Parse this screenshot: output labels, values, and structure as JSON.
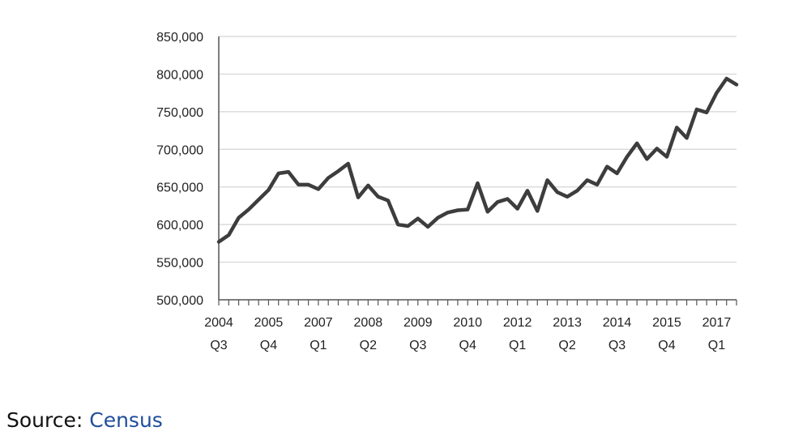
{
  "chart_data": {
    "type": "line",
    "title": "",
    "xlabel": "",
    "ylabel": "",
    "ylim": [
      500000,
      850000
    ],
    "yticks": [
      "850,000",
      "800,000",
      "750,000",
      "700,000",
      "650,000",
      "600,000",
      "550,000",
      "500,000"
    ],
    "ytick_values": [
      850000,
      800000,
      750000,
      700000,
      650000,
      600000,
      550000,
      500000
    ],
    "xtick_labels": [
      {
        "year": "2004",
        "quarter": "Q3"
      },
      {
        "year": "2005",
        "quarter": "Q4"
      },
      {
        "year": "2007",
        "quarter": "Q1"
      },
      {
        "year": "2008",
        "quarter": "Q2"
      },
      {
        "year": "2009",
        "quarter": "Q3"
      },
      {
        "year": "2010",
        "quarter": "Q4"
      },
      {
        "year": "2012",
        "quarter": "Q1"
      },
      {
        "year": "2013",
        "quarter": "Q2"
      },
      {
        "year": "2014",
        "quarter": "Q3"
      },
      {
        "year": "2015",
        "quarter": "Q4"
      },
      {
        "year": "2017",
        "quarter": "Q1"
      }
    ],
    "grid": true,
    "line_color": "#3d3d3d",
    "series": [
      {
        "x": [
          "2004 Q3",
          "2004 Q4",
          "2005 Q1",
          "2005 Q2",
          "2005 Q3",
          "2005 Q4",
          "2006 Q1",
          "2006 Q2",
          "2006 Q3",
          "2006 Q4",
          "2007 Q1",
          "2007 Q2",
          "2007 Q3",
          "2007 Q4",
          "2008 Q1",
          "2008 Q2",
          "2008 Q3",
          "2008 Q4",
          "2009 Q1",
          "2009 Q2",
          "2009 Q3",
          "2009 Q4",
          "2010 Q1",
          "2010 Q2",
          "2010 Q3",
          "2010 Q4",
          "2011 Q1",
          "2011 Q2",
          "2011 Q3",
          "2011 Q4",
          "2012 Q1",
          "2012 Q2",
          "2012 Q3",
          "2012 Q4",
          "2013 Q1",
          "2013 Q2",
          "2013 Q3",
          "2013 Q4",
          "2014 Q1",
          "2014 Q2",
          "2014 Q3",
          "2014 Q4",
          "2015 Q1",
          "2015 Q2",
          "2015 Q3",
          "2015 Q4",
          "2016 Q1",
          "2016 Q2",
          "2016 Q3",
          "2016 Q4",
          "2017 Q1",
          "2017 Q2",
          "2017 Q3"
        ],
        "values": [
          577000,
          586000,
          609000,
          620000,
          633000,
          646000,
          668000,
          670000,
          653000,
          653000,
          647000,
          662000,
          671000,
          681000,
          636000,
          652000,
          637000,
          632000,
          600000,
          598000,
          608000,
          597000,
          609000,
          616000,
          619000,
          620000,
          655000,
          617000,
          630000,
          634000,
          621000,
          645000,
          618000,
          659000,
          643000,
          637000,
          645000,
          659000,
          653000,
          677000,
          668000,
          690000,
          708000,
          687000,
          701000,
          690000,
          729000,
          715000,
          753000,
          749000,
          775000,
          794000,
          786000
        ]
      }
    ]
  },
  "source": {
    "label": "Source:",
    "link_text": "Census"
  }
}
